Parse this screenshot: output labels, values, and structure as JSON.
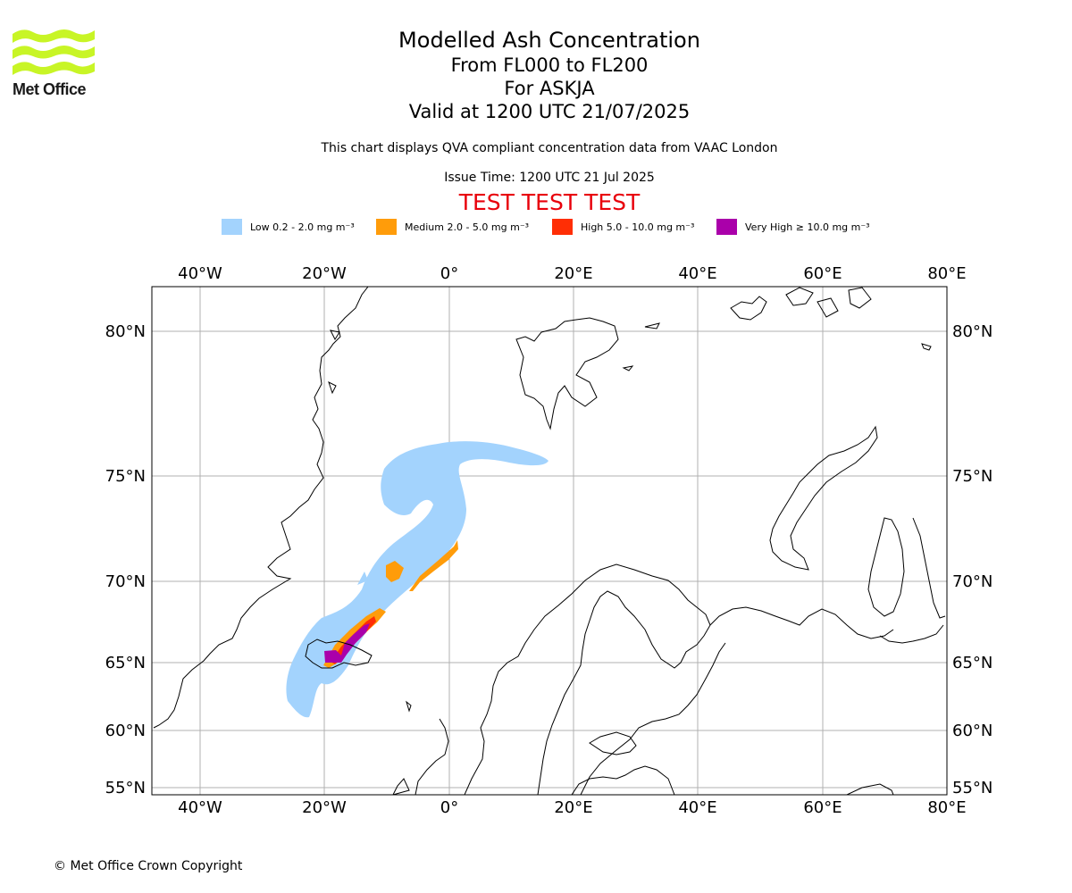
{
  "logo": {
    "name": "Met Office",
    "color": "#c8f526"
  },
  "title": {
    "line1": "Modelled Ash Concentration",
    "line2": "From FL000 to FL200",
    "line3": "For ASKJA",
    "line4": "Valid at 1200 UTC 21/07/2025"
  },
  "description": "This chart displays QVA compliant concentration data from VAAC London",
  "issue_time": "Issue Time: 1200 UTC 21 Jul 2025",
  "test_banner": "TEST TEST TEST",
  "legend": [
    {
      "label": "Low 0.2 - 2.0 mg m⁻³",
      "color": "#a3d3fd"
    },
    {
      "label": "Medium 2.0 - 5.0 mg m⁻³",
      "color": "#ff9c0a"
    },
    {
      "label": "High 5.0 - 10.0 mg m⁻³",
      "color": "#ff2e05"
    },
    {
      "label": "Very High ≥ 10.0 mg m⁻³",
      "color": "#aa00aa"
    }
  ],
  "map": {
    "lon_ticks": [
      "40°W",
      "20°W",
      "0°",
      "20°E",
      "40°E",
      "60°E",
      "80°E"
    ],
    "lat_ticks": [
      "80°N",
      "75°N",
      "70°N",
      "65°N",
      "60°N",
      "55°N"
    ],
    "extent": {
      "lon": [
        -47.5,
        80
      ],
      "lat": [
        54,
        82
      ]
    },
    "grid": true,
    "coastline_color": "#000000",
    "grid_color": "#b0b0b0"
  },
  "copyright": "© Met Office Crown Copyright"
}
